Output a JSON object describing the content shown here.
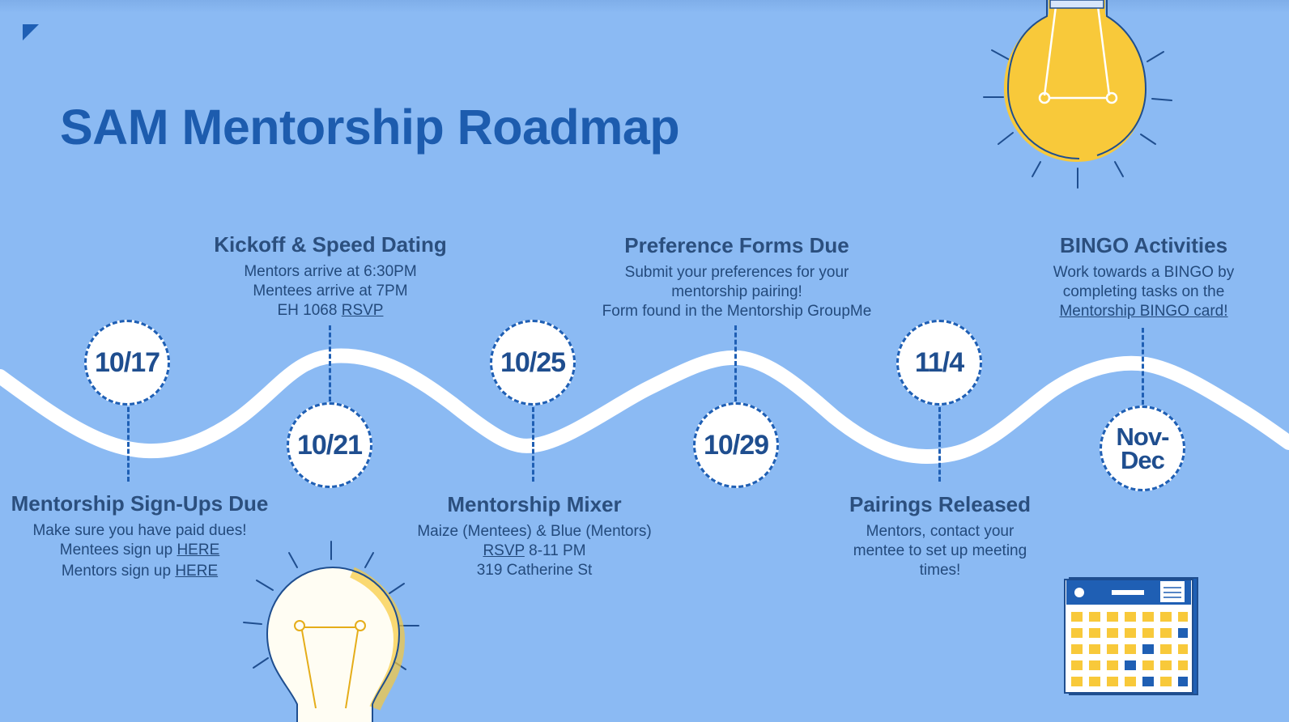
{
  "title": "SAM Mentorship Roadmap",
  "colors": {
    "background": "#8bbaf3",
    "accent": "#1f5fb4",
    "bulb_yellow": "#f8c93a"
  },
  "milestones": [
    {
      "date": "10/17",
      "title": "Mentorship Sign-Ups Due",
      "line1": "Make sure you have paid dues!",
      "line2_prefix": "Mentees sign up ",
      "line2_link": "HERE",
      "line3_prefix": "Mentors sign up ",
      "line3_link": "HERE"
    },
    {
      "date": "10/21",
      "title": "Kickoff & Speed Dating",
      "line1": "Mentors arrive at 6:30PM",
      "line2": "Mentees arrive at 7PM",
      "line3_prefix": "EH  1068 ",
      "line3_link": "RSVP"
    },
    {
      "date": "10/25",
      "title": "Mentorship Mixer",
      "line1": "Maize (Mentees) & Blue (Mentors)",
      "line2_link": "RSVP",
      "line2_suffix": " 8-11 PM",
      "line3": "319 Catherine St"
    },
    {
      "date": "10/29",
      "title": "Preference Forms Due",
      "line1": "Submit your preferences for your",
      "line2": "mentorship pairing!",
      "line3": "Form found in the Mentorship GroupMe"
    },
    {
      "date": "11/4",
      "title": "Pairings Released",
      "line1": "Mentors, contact your",
      "line2": "mentee to set up meeting",
      "line3": "times!"
    },
    {
      "date_line1": "Nov-",
      "date_line2": "Dec",
      "title": "BINGO Activities",
      "line1": "Work towards a BINGO by",
      "line2": "completing tasks on the",
      "line3_link": "Mentorship BINGO card!"
    }
  ],
  "icons": [
    "lightbulb-yellow-icon",
    "lightbulb-white-icon",
    "calendar-icon"
  ]
}
